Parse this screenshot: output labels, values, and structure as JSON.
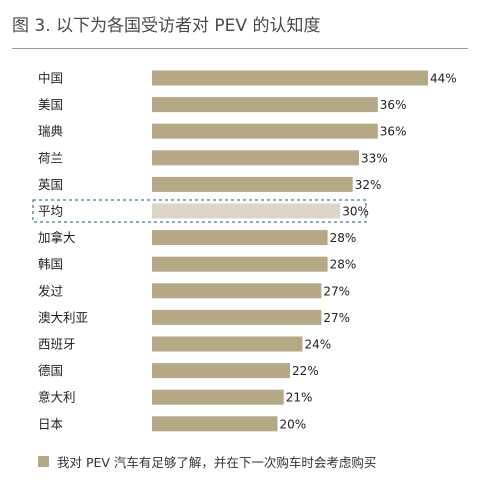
{
  "title": "图 3. 以下为各国受访者对 PEV 的认知度",
  "colors": {
    "bar": "#b4a885",
    "highlight_bar": "#dcd6c6",
    "highlight_box": "#3f7f9a",
    "label": "#222222"
  },
  "chart_data": {
    "type": "bar",
    "orientation": "horizontal",
    "categories": [
      "中国",
      "美国",
      "瑞典",
      "荷兰",
      "英国",
      "平均",
      "加拿大",
      "韩国",
      "发过",
      "澳大利亚",
      "西班牙",
      "德国",
      "意大利",
      "日本"
    ],
    "values": [
      44,
      36,
      36,
      33,
      32,
      30,
      28,
      28,
      27,
      27,
      24,
      22,
      21,
      20
    ],
    "value_labels": [
      "44%",
      "36%",
      "36%",
      "33%",
      "32%",
      "30%",
      "28%",
      "28%",
      "27%",
      "27%",
      "24%",
      "22%",
      "21%",
      "20%"
    ],
    "highlight_category": "平均",
    "legend": [
      "我对 PEV 汽车有足够了解，并在下一次购车时会考虑购买"
    ],
    "legend_position": "bottom",
    "xlim": [
      0,
      44
    ],
    "grid": false
  }
}
